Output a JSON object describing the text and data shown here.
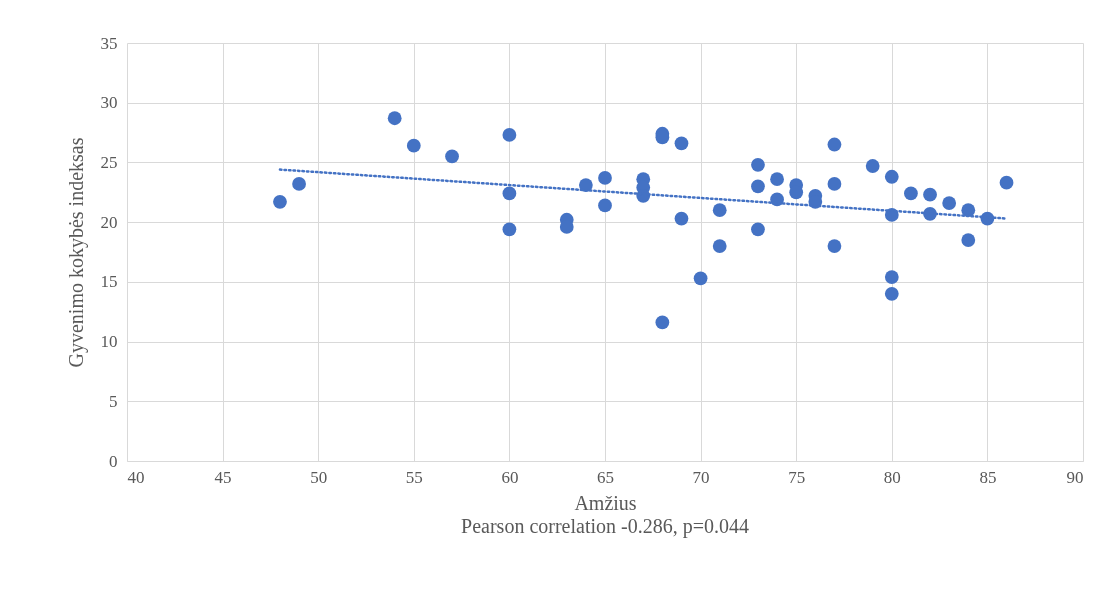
{
  "chart_data": {
    "type": "scatter",
    "xlabel": "Amžius",
    "ylabel": "Gyvenimo kokybės  indeksas",
    "annotations": [
      "Pearson correlation -0.286, p=0.044"
    ],
    "xlim": [
      40,
      90
    ],
    "xticks": [
      40,
      45,
      50,
      55,
      60,
      65,
      70,
      75,
      80,
      85,
      90
    ],
    "ylim": [
      0,
      35
    ],
    "yticks": [
      0,
      5,
      10,
      15,
      20,
      25,
      30,
      35
    ],
    "grid": true,
    "marker": "circle",
    "series": [
      {
        "color": "#4472c4",
        "x": [
          48,
          49,
          54,
          55,
          57,
          60,
          60,
          60,
          63,
          63,
          64,
          65,
          65,
          67,
          67,
          67,
          68,
          68,
          68,
          69,
          69,
          70,
          71,
          71,
          73,
          73,
          73,
          74,
          74,
          75,
          75,
          76,
          76,
          77,
          77,
          77,
          79,
          80,
          80,
          80,
          80,
          81,
          82,
          82,
          83,
          84,
          84,
          85,
          86
        ],
        "values": [
          21.7,
          23.2,
          28.7,
          26.4,
          25.5,
          27.3,
          22.4,
          19.4,
          20.2,
          19.6,
          23.1,
          23.7,
          21.4,
          23.6,
          22.9,
          22.2,
          27.4,
          27.1,
          11.6,
          26.6,
          20.3,
          15.3,
          21.0,
          18.0,
          24.8,
          23.0,
          19.4,
          23.6,
          21.9,
          23.1,
          22.5,
          22.2,
          21.7,
          26.5,
          23.2,
          18.0,
          24.7,
          23.8,
          20.6,
          15.4,
          14.0,
          22.4,
          22.3,
          20.7,
          21.6,
          21.0,
          18.5,
          20.3,
          23.3
        ]
      },
      {
        "type": "line",
        "color": "#4472c4",
        "line_style": "dotted",
        "marker": "none",
        "x": [
          48,
          86
        ],
        "values": [
          24.4,
          20.3
        ]
      }
    ]
  }
}
